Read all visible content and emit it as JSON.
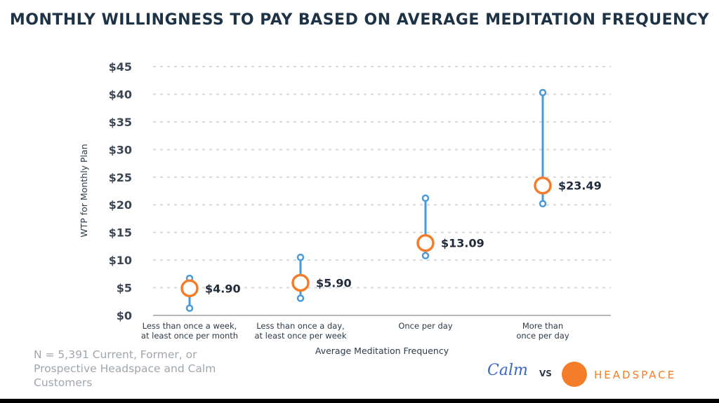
{
  "chart_data": {
    "type": "range-dot",
    "title": "MONTHLY WILLINGNESS TO PAY BASED ON AVERAGE MEDITATION FREQUENCY",
    "xlabel": "Average Meditation Frequency",
    "ylabel": "WTP for Monthly Plan",
    "ylim": [
      0,
      45
    ],
    "yticks": [
      0,
      5,
      10,
      15,
      20,
      25,
      30,
      35,
      40,
      45
    ],
    "ytick_labels": [
      "$0",
      "$5",
      "$10",
      "$15",
      "$20",
      "$25",
      "$30",
      "$35",
      "$40",
      "$45"
    ],
    "grid": true,
    "categories": [
      [
        "Less than once a week,",
        "at least once per month"
      ],
      [
        "Less than once a day,",
        "at least once per week"
      ],
      [
        "Once per day"
      ],
      [
        "More than",
        "once per day"
      ]
    ],
    "values": [
      4.9,
      5.9,
      13.09,
      23.49
    ],
    "value_labels": [
      "$4.90",
      "$5.90",
      "$13.09",
      "$23.49"
    ],
    "low": [
      1.3,
      3.1,
      10.8,
      20.2
    ],
    "high": [
      6.7,
      10.5,
      21.2,
      40.3
    ],
    "colors": {
      "range": "#4a9ad8",
      "point": "#f47d2a",
      "grid": "#d6d9dd"
    }
  },
  "footnote": "N = 5,391 Current, Former, or Prospective Headspace and Calm Customers",
  "brands": {
    "calm": "Calm",
    "vs": "VS",
    "headspace": "HEADSPACE",
    "headspace_color": "#f47d2a"
  }
}
